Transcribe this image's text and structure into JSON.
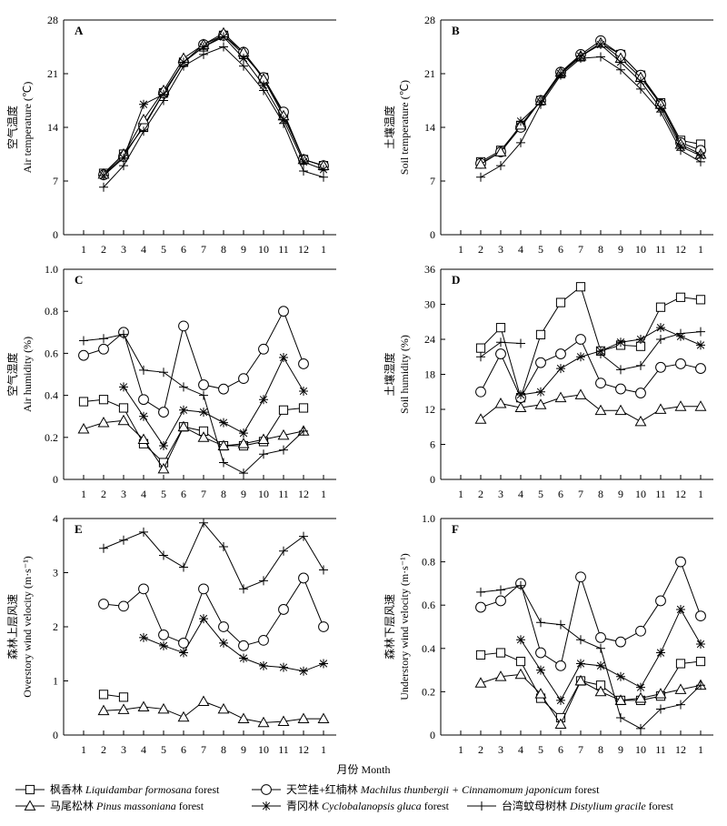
{
  "legend_entries": [
    {
      "key": "maple",
      "marker": "square",
      "zh": "枫香林",
      "latin": "Liquidambar formosana",
      "suffix": " forest"
    },
    {
      "key": "machilus",
      "marker": "circle",
      "zh": "天竺桂+红楠林",
      "latin": "Machilus thunbergii + Cinnamomum japonicum",
      "suffix": " forest"
    },
    {
      "key": "pine",
      "marker": "triangle",
      "zh": "马尾松林",
      "latin": "Pinus massoniana",
      "suffix": " forest"
    },
    {
      "key": "oak",
      "marker": "star",
      "zh": "青冈林",
      "latin": "Cyclobalanopsis gluca",
      "suffix": " forest"
    },
    {
      "key": "dist",
      "marker": "plus",
      "zh": "台湾蚊母树林",
      "latin": "Distylium gracile",
      "suffix": " forest"
    }
  ],
  "x_axis_title": "月份 Month",
  "chart_data": [
    {
      "type": "line",
      "panel": "A",
      "ylabel_zh": "空气温度",
      "ylabel_en": "Air temperature (℃)",
      "ylim": [
        0,
        28
      ],
      "yticks": [
        "0",
        "7",
        "14",
        "21",
        "28"
      ],
      "xticks": [
        "1",
        "2",
        "3",
        "4",
        "5",
        "6",
        "7",
        "8",
        "9",
        "10",
        "11",
        "12",
        "1"
      ],
      "series": [
        {
          "key": "maple",
          "values": [
            null,
            8.0,
            10.5,
            14.0,
            18.5,
            22.5,
            24.5,
            26.0,
            23.5,
            20.5,
            15.8,
            9.8,
            9.0
          ]
        },
        {
          "key": "machilus",
          "values": [
            null,
            7.8,
            10.2,
            14.2,
            18.5,
            22.5,
            24.8,
            26.0,
            23.8,
            20.5,
            16.0,
            9.8,
            9.0
          ]
        },
        {
          "key": "pine",
          "values": [
            null,
            7.9,
            10.5,
            15.0,
            18.8,
            23.0,
            24.8,
            26.3,
            23.8,
            20.3,
            15.5,
            9.8,
            9.0
          ]
        },
        {
          "key": "oak",
          "values": [
            null,
            7.7,
            10.0,
            17.0,
            18.3,
            22.5,
            24.5,
            25.8,
            23.0,
            19.5,
            15.0,
            9.5,
            8.5
          ]
        },
        {
          "key": "dist",
          "values": [
            null,
            6.2,
            9.0,
            13.5,
            17.5,
            22.0,
            23.5,
            24.5,
            22.0,
            18.8,
            14.5,
            8.3,
            7.5
          ]
        }
      ]
    },
    {
      "type": "line",
      "panel": "B",
      "ylabel_zh": "土壤温度",
      "ylabel_en": "Soil temperature (℃)",
      "ylim": [
        0,
        28
      ],
      "yticks": [
        "0",
        "7",
        "14",
        "21",
        "28"
      ],
      "xticks": [
        "1",
        "2",
        "3",
        "4",
        "5",
        "6",
        "7",
        "8",
        "9",
        "10",
        "11",
        "12",
        "1"
      ],
      "series": [
        {
          "key": "maple",
          "values": [
            null,
            9.5,
            11.0,
            14.2,
            17.5,
            21.0,
            23.2,
            25.0,
            23.5,
            20.8,
            17.2,
            12.3,
            11.8
          ]
        },
        {
          "key": "machilus",
          "values": [
            null,
            9.3,
            10.8,
            14.0,
            17.5,
            21.2,
            23.5,
            25.3,
            23.5,
            20.8,
            17.0,
            12.0,
            11.0
          ]
        },
        {
          "key": "pine",
          "values": [
            null,
            9.2,
            10.8,
            14.3,
            17.5,
            21.2,
            23.3,
            25.0,
            23.0,
            20.5,
            17.0,
            11.8,
            10.5
          ]
        },
        {
          "key": "oak",
          "values": [
            null,
            null,
            null,
            14.8,
            17.3,
            21.0,
            23.3,
            24.8,
            22.5,
            20.0,
            16.5,
            11.5,
            10.3
          ]
        },
        {
          "key": "dist",
          "values": [
            null,
            7.5,
            9.0,
            12.0,
            17.0,
            20.8,
            23.0,
            23.2,
            21.5,
            19.0,
            16.0,
            11.0,
            9.5
          ]
        }
      ]
    },
    {
      "type": "line",
      "panel": "C",
      "ylabel_zh": "空气湿度",
      "ylabel_en": "Air humidity (%)",
      "ylim": [
        0,
        1.0
      ],
      "yticks": [
        "0",
        "0.2",
        "0.4",
        "0.6",
        "0.8",
        "1.0"
      ],
      "xticks": [
        "1",
        "2",
        "3",
        "4",
        "5",
        "6",
        "7",
        "8",
        "9",
        "10",
        "11",
        "12",
        "1"
      ],
      "series": [
        {
          "key": "maple",
          "values": [
            0.37,
            0.38,
            0.34,
            0.17,
            0.08,
            0.25,
            0.23,
            0.16,
            0.16,
            0.18,
            0.33,
            0.34,
            null
          ]
        },
        {
          "key": "machilus",
          "values": [
            0.59,
            0.62,
            0.7,
            0.38,
            0.32,
            0.73,
            0.45,
            0.43,
            0.48,
            0.62,
            0.8,
            0.55,
            null
          ]
        },
        {
          "key": "pine",
          "values": [
            0.24,
            0.27,
            0.28,
            0.19,
            0.05,
            0.25,
            0.2,
            0.16,
            0.17,
            0.19,
            0.21,
            0.23,
            null
          ]
        },
        {
          "key": "oak",
          "values": [
            null,
            null,
            0.44,
            0.3,
            0.16,
            0.33,
            0.32,
            0.27,
            0.22,
            0.38,
            0.58,
            0.42,
            null
          ]
        },
        {
          "key": "dist",
          "values": [
            0.66,
            0.67,
            0.69,
            0.52,
            0.51,
            0.44,
            0.4,
            0.08,
            0.03,
            0.12,
            0.14,
            0.23,
            null
          ]
        }
      ]
    },
    {
      "type": "line",
      "panel": "D",
      "ylabel_zh": "土壤湿度",
      "ylabel_en": "Soil humidity (%)",
      "ylim": [
        0,
        36
      ],
      "yticks": [
        "0",
        "6",
        "12",
        "18",
        "24",
        "30",
        "36"
      ],
      "xticks": [
        "1",
        "2",
        "3",
        "4",
        "5",
        "6",
        "7",
        "8",
        "9",
        "10",
        "11",
        "12",
        "1"
      ],
      "series": [
        {
          "key": "maple",
          "values": [
            null,
            22.5,
            26.0,
            14.0,
            24.8,
            30.3,
            33.0,
            22.0,
            23.0,
            22.8,
            29.5,
            31.2,
            30.8
          ]
        },
        {
          "key": "machilus",
          "values": [
            null,
            15.0,
            21.5,
            14.0,
            20.0,
            21.5,
            24.0,
            16.5,
            15.5,
            14.8,
            19.2,
            19.8,
            19.0
          ]
        },
        {
          "key": "pine",
          "values": [
            null,
            10.3,
            13.0,
            12.3,
            12.8,
            14.0,
            14.5,
            11.8,
            11.8,
            9.9,
            12.0,
            12.5,
            12.5
          ]
        },
        {
          "key": "oak",
          "values": [
            null,
            null,
            null,
            14.5,
            15.0,
            19.0,
            21.0,
            22.0,
            23.5,
            24.0,
            26.0,
            24.5,
            23.0
          ]
        },
        {
          "key": "dist",
          "values": [
            null,
            21.0,
            23.5,
            23.3,
            null,
            null,
            null,
            21.5,
            18.8,
            19.5,
            24.0,
            25.0,
            25.3
          ]
        }
      ]
    },
    {
      "type": "line",
      "panel": "E",
      "ylabel_zh": "森林上层风速",
      "ylabel_en": "Overstory wind velocity (m·s⁻¹)",
      "ylim": [
        0,
        4
      ],
      "yticks": [
        "0",
        "1",
        "2",
        "3",
        "4"
      ],
      "xticks": [
        "1",
        "2",
        "3",
        "4",
        "5",
        "6",
        "7",
        "8",
        "9",
        "10",
        "11",
        "12",
        "1"
      ],
      "series": [
        {
          "key": "maple",
          "values": [
            null,
            0.75,
            0.7,
            null,
            null,
            null,
            null,
            null,
            null,
            null,
            null,
            null,
            null
          ]
        },
        {
          "key": "machilus",
          "values": [
            null,
            2.42,
            2.38,
            2.7,
            1.85,
            1.7,
            2.7,
            2.0,
            1.65,
            1.75,
            2.32,
            2.9,
            2.0
          ]
        },
        {
          "key": "pine",
          "values": [
            null,
            0.45,
            0.47,
            0.52,
            0.48,
            0.33,
            0.62,
            0.48,
            0.3,
            0.23,
            0.25,
            0.3,
            0.3
          ]
        },
        {
          "key": "oak",
          "values": [
            null,
            null,
            null,
            1.8,
            1.65,
            1.52,
            2.15,
            1.7,
            1.42,
            1.28,
            1.25,
            1.18,
            1.32
          ]
        },
        {
          "key": "dist",
          "values": [
            null,
            3.45,
            3.6,
            3.75,
            3.32,
            3.1,
            3.92,
            3.48,
            2.7,
            2.85,
            3.4,
            3.67,
            3.05
          ]
        }
      ]
    },
    {
      "type": "line",
      "panel": "F",
      "ylabel_zh": "森林下层风速",
      "ylabel_en": "Understory wind velocity (m·s⁻¹)",
      "ylim": [
        0,
        1.0
      ],
      "yticks": [
        "0",
        "0.2",
        "0.4",
        "0.6",
        "0.8",
        "1.0"
      ],
      "xticks": [
        "1",
        "2",
        "3",
        "4",
        "5",
        "6",
        "7",
        "8",
        "9",
        "10",
        "11",
        "12",
        "1"
      ],
      "series": [
        {
          "key": "maple",
          "values": [
            null,
            0.37,
            0.38,
            0.34,
            0.17,
            0.08,
            0.25,
            0.23,
            0.16,
            0.16,
            0.18,
            0.33,
            0.34
          ]
        },
        {
          "key": "machilus",
          "values": [
            null,
            0.59,
            0.62,
            0.7,
            0.38,
            0.32,
            0.73,
            0.45,
            0.43,
            0.48,
            0.62,
            0.8,
            0.55
          ]
        },
        {
          "key": "pine",
          "values": [
            null,
            0.24,
            0.27,
            0.28,
            0.19,
            0.05,
            0.25,
            0.2,
            0.16,
            0.17,
            0.19,
            0.21,
            0.23
          ]
        },
        {
          "key": "oak",
          "values": [
            null,
            null,
            null,
            0.44,
            0.3,
            0.16,
            0.33,
            0.32,
            0.27,
            0.22,
            0.38,
            0.58,
            0.42
          ]
        },
        {
          "key": "dist",
          "values": [
            null,
            0.66,
            0.67,
            0.69,
            0.52,
            0.51,
            0.44,
            0.4,
            0.08,
            0.03,
            0.12,
            0.14,
            0.23
          ]
        }
      ]
    }
  ]
}
